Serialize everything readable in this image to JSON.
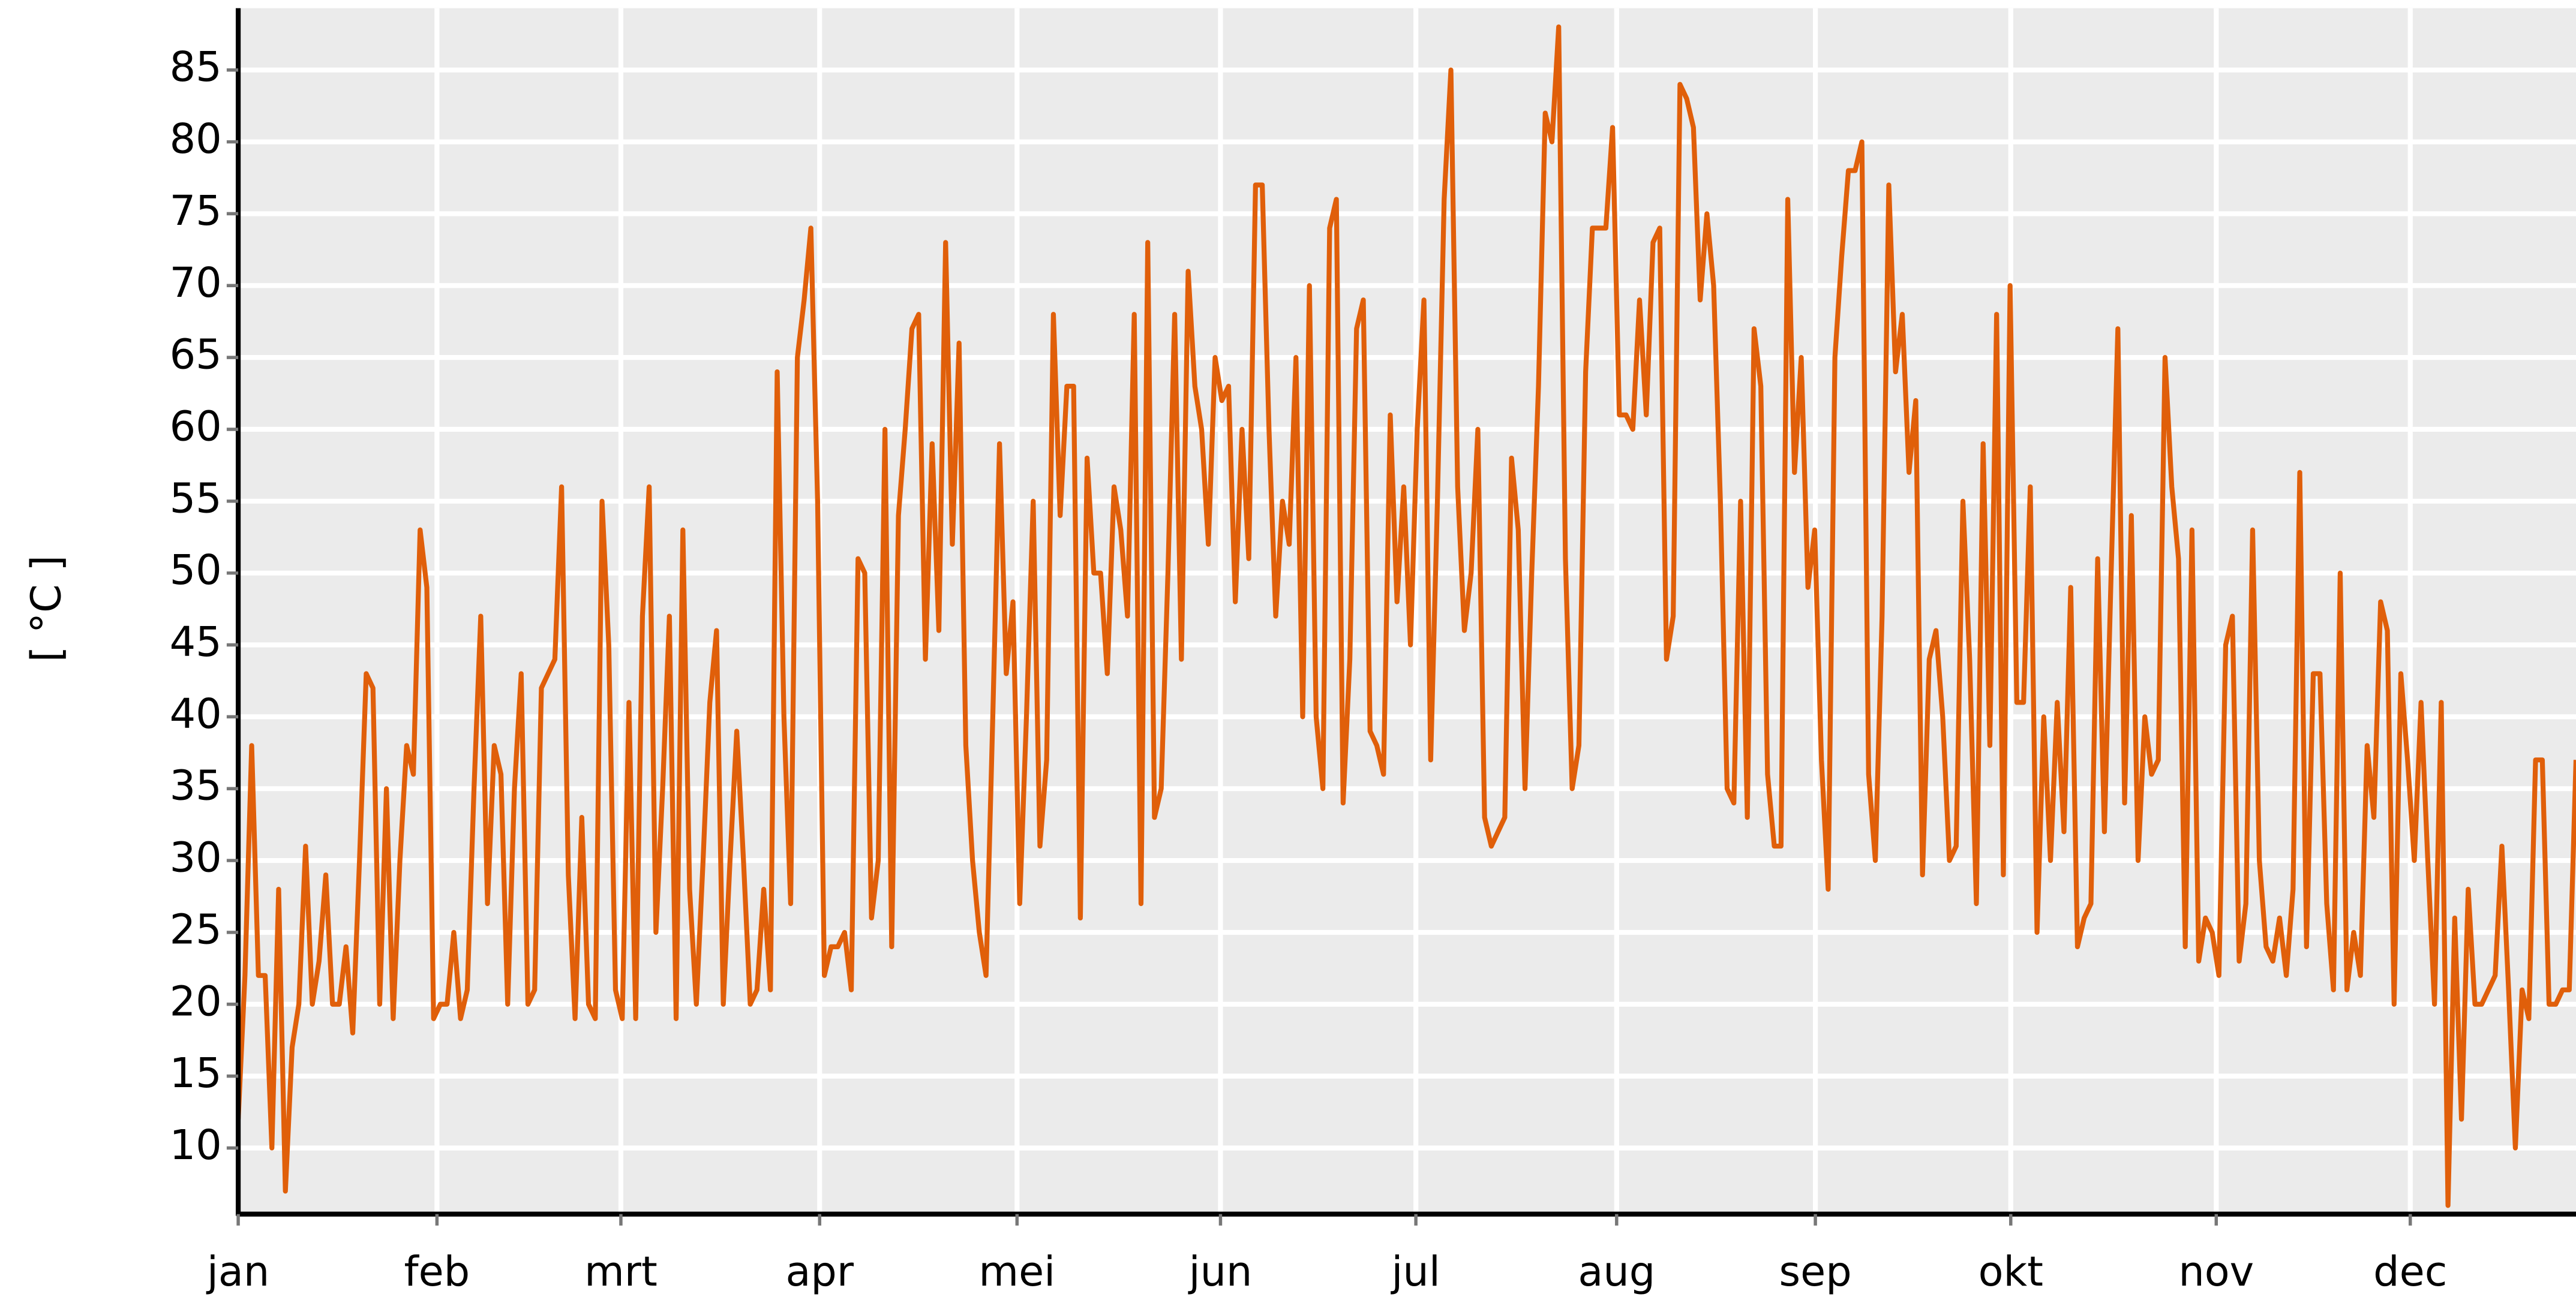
{
  "chart_data": {
    "type": "line",
    "ylabel": "[ °C ]",
    "series": [
      {
        "color": "#e05f0a",
        "values": [
          12,
          22,
          38,
          22,
          22,
          10,
          28,
          7,
          17,
          20,
          31,
          20,
          23,
          29,
          20,
          20,
          24,
          18,
          30,
          43,
          42,
          20,
          35,
          19,
          30,
          38,
          36,
          53,
          49,
          19,
          20,
          20,
          25,
          19,
          21,
          35,
          47,
          27,
          38,
          36,
          20,
          35,
          43,
          20,
          21,
          42,
          43,
          44,
          56,
          29,
          19,
          33,
          20,
          19,
          55,
          45,
          21,
          19,
          41,
          19,
          47,
          56,
          25,
          35,
          47,
          19,
          53,
          28,
          20,
          30,
          41,
          46,
          20,
          30,
          39,
          30,
          20,
          21,
          28,
          21,
          64,
          40,
          27,
          65,
          69,
          74,
          55,
          22,
          24,
          24,
          25,
          21,
          51,
          50,
          26,
          30,
          60,
          24,
          54,
          60,
          67,
          68,
          44,
          59,
          46,
          73,
          52,
          66,
          38,
          30,
          25,
          22,
          40,
          59,
          43,
          48,
          27,
          40,
          55,
          31,
          37,
          68,
          54,
          63,
          63,
          26,
          58,
          50,
          50,
          43,
          56,
          53,
          47,
          68,
          27,
          73,
          33,
          35,
          50,
          68,
          44,
          71,
          63,
          60,
          52,
          65,
          62,
          63,
          48,
          60,
          51,
          77,
          77,
          60,
          47,
          55,
          52,
          65,
          40,
          70,
          40,
          35,
          74,
          76,
          34,
          44,
          67,
          69,
          39,
          38,
          36,
          61,
          48,
          56,
          45,
          60,
          69,
          37,
          55,
          76,
          85,
          56,
          46,
          50,
          60,
          33,
          31,
          32,
          33,
          58,
          53,
          35,
          50,
          63,
          82,
          80,
          88,
          51,
          35,
          38,
          64,
          74,
          74,
          74,
          81,
          61,
          61,
          60,
          69,
          61,
          73,
          74,
          44,
          47,
          84,
          83,
          81,
          69,
          75,
          70,
          55,
          35,
          34,
          55,
          33,
          67,
          63,
          36,
          31,
          31,
          76,
          57,
          65,
          49,
          53,
          37,
          28,
          65,
          72,
          78,
          78,
          80,
          36,
          30,
          47,
          77,
          64,
          68,
          57,
          62,
          29,
          44,
          46,
          40,
          30,
          31,
          55,
          44,
          27,
          59,
          38,
          68,
          29,
          70,
          41,
          41,
          56,
          25,
          40,
          30,
          41,
          32,
          49,
          24,
          26,
          27,
          51,
          32,
          50,
          67,
          34,
          54,
          30,
          40,
          36,
          37,
          65,
          56,
          51,
          24,
          53,
          23,
          26,
          25,
          22,
          45,
          47,
          23,
          27,
          53,
          30,
          24,
          23,
          26,
          22,
          28,
          57,
          24,
          43,
          43,
          27,
          21,
          50,
          21,
          25,
          22,
          38,
          33,
          48,
          46,
          20,
          43,
          37,
          30,
          41,
          30,
          20,
          41,
          6,
          26,
          12,
          28,
          20,
          20,
          21,
          22,
          31,
          21,
          10,
          21,
          19,
          37,
          37,
          20,
          20,
          21,
          21,
          37
        ]
      }
    ],
    "xlim": [
      0,
      347
    ],
    "xticks": [
      {
        "value": 0,
        "label": "jan"
      },
      {
        "value": 29.5,
        "label": "feb"
      },
      {
        "value": 56.8,
        "label": "mrt"
      },
      {
        "value": 86.3,
        "label": "apr"
      },
      {
        "value": 115.6,
        "label": "mei"
      },
      {
        "value": 145.8,
        "label": "jun"
      },
      {
        "value": 174.8,
        "label": "jul"
      },
      {
        "value": 204.6,
        "label": "aug"
      },
      {
        "value": 234.1,
        "label": "sep"
      },
      {
        "value": 263.1,
        "label": "okt"
      },
      {
        "value": 293.6,
        "label": "nov"
      },
      {
        "value": 322.4,
        "label": "dec"
      }
    ],
    "ylim": [
      5.4,
      89.3
    ],
    "yticks": [
      10,
      15,
      20,
      25,
      30,
      35,
      40,
      45,
      50,
      55,
      60,
      65,
      70,
      75,
      80,
      85
    ],
    "grid": true
  }
}
